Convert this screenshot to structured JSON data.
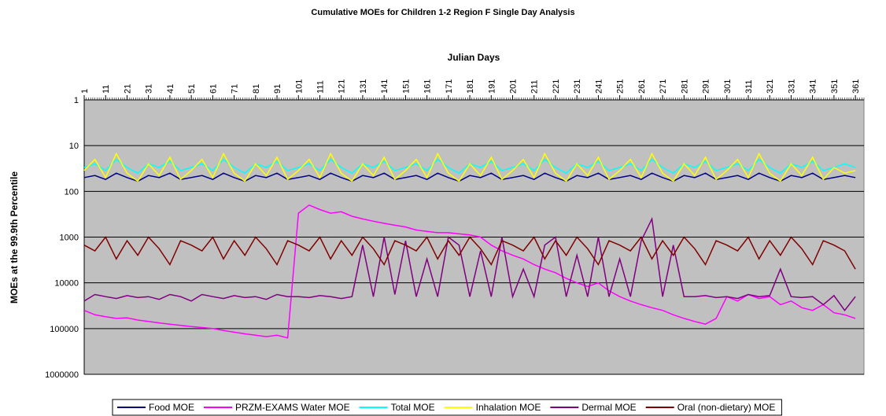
{
  "chart_data": {
    "type": "line",
    "title": "Cumulative MOEs for Children 1-2 Region F Single Day Analysis",
    "x_label": "Julian Days",
    "y_label": "MOEs at the 99.9th Percentile",
    "x": [
      1,
      6,
      11,
      16,
      21,
      26,
      31,
      36,
      41,
      46,
      51,
      56,
      61,
      66,
      71,
      76,
      81,
      86,
      91,
      96,
      101,
      106,
      111,
      116,
      121,
      126,
      131,
      136,
      141,
      146,
      151,
      156,
      161,
      166,
      171,
      176,
      181,
      186,
      191,
      196,
      201,
      206,
      211,
      216,
      221,
      226,
      231,
      236,
      241,
      246,
      251,
      256,
      261,
      266,
      271,
      276,
      281,
      286,
      291,
      296,
      301,
      306,
      311,
      316,
      321,
      326,
      331,
      336,
      341,
      346,
      351,
      356,
      361
    ],
    "xlim": [
      1,
      365
    ],
    "xticks": [
      1,
      11,
      21,
      31,
      41,
      51,
      61,
      71,
      81,
      91,
      101,
      111,
      121,
      131,
      141,
      151,
      161,
      171,
      181,
      191,
      201,
      211,
      221,
      231,
      241,
      251,
      261,
      271,
      281,
      291,
      301,
      311,
      321,
      331,
      341,
      351,
      361
    ],
    "ylim": [
      1,
      1000000
    ],
    "yticks": [
      1,
      10,
      100,
      1000,
      10000,
      100000,
      1000000
    ],
    "y_log": true,
    "y_inverted": true,
    "x_axis_position": "top",
    "grid": true,
    "plot_background": "#c0c0c0",
    "legend_position": "bottom",
    "series": [
      {
        "name": "Food MOE",
        "color": "#000080",
        "values": [
          50,
          45,
          55,
          40,
          50,
          60,
          45,
          50,
          40,
          55,
          50,
          45,
          55,
          40,
          50,
          60,
          45,
          50,
          40,
          55,
          50,
          45,
          55,
          40,
          50,
          60,
          45,
          50,
          40,
          55,
          50,
          45,
          55,
          40,
          50,
          60,
          45,
          50,
          40,
          55,
          50,
          45,
          55,
          40,
          50,
          60,
          45,
          50,
          40,
          55,
          50,
          45,
          55,
          40,
          50,
          60,
          45,
          50,
          40,
          55,
          50,
          45,
          55,
          40,
          50,
          60,
          45,
          50,
          40,
          55,
          50,
          45,
          50
        ]
      },
      {
        "name": "PRZM-EXAMS Water MOE",
        "color": "#ff00ff",
        "values": [
          40000,
          50000,
          55000,
          60000,
          58000,
          65000,
          70000,
          75000,
          80000,
          85000,
          90000,
          95000,
          100000,
          110000,
          120000,
          130000,
          140000,
          150000,
          140000,
          160000,
          300,
          200,
          250,
          300,
          280,
          350,
          400,
          450,
          500,
          550,
          600,
          700,
          750,
          800,
          800,
          850,
          900,
          1000,
          1500,
          2000,
          2500,
          3000,
          4000,
          5000,
          6000,
          8000,
          10000,
          12000,
          10000,
          15000,
          20000,
          25000,
          30000,
          35000,
          40000,
          50000,
          60000,
          70000,
          80000,
          60000,
          20000,
          25000,
          18000,
          22000,
          20000,
          30000,
          25000,
          35000,
          40000,
          30000,
          45000,
          50000,
          60000
        ]
      },
      {
        "name": "Total MOE",
        "color": "#00ffff",
        "values": [
          30,
          25,
          35,
          20,
          30,
          40,
          25,
          30,
          22,
          35,
          30,
          25,
          35,
          20,
          30,
          40,
          25,
          30,
          22,
          35,
          30,
          25,
          35,
          20,
          30,
          40,
          25,
          30,
          22,
          35,
          30,
          25,
          35,
          20,
          30,
          40,
          25,
          30,
          22,
          35,
          30,
          25,
          35,
          20,
          30,
          40,
          25,
          30,
          22,
          35,
          30,
          25,
          35,
          20,
          30,
          40,
          25,
          30,
          22,
          35,
          30,
          25,
          35,
          20,
          30,
          40,
          25,
          30,
          22,
          35,
          30,
          25,
          30
        ]
      },
      {
        "name": "Inhalation MOE",
        "color": "#ffff00",
        "values": [
          35,
          20,
          50,
          15,
          40,
          60,
          25,
          45,
          18,
          55,
          35,
          20,
          50,
          15,
          40,
          60,
          25,
          45,
          18,
          55,
          35,
          20,
          50,
          15,
          40,
          60,
          25,
          45,
          18,
          55,
          35,
          20,
          50,
          15,
          40,
          60,
          25,
          45,
          18,
          55,
          35,
          20,
          50,
          15,
          40,
          60,
          25,
          45,
          18,
          55,
          35,
          20,
          50,
          15,
          40,
          60,
          25,
          45,
          18,
          55,
          35,
          20,
          50,
          15,
          40,
          60,
          25,
          45,
          18,
          55,
          30,
          40,
          35
        ]
      },
      {
        "name": "Dermal MOE",
        "color": "#800080",
        "values": [
          25000,
          18000,
          20000,
          22000,
          19000,
          21000,
          20000,
          23000,
          18000,
          20000,
          25000,
          18000,
          20000,
          22000,
          19000,
          21000,
          20000,
          23000,
          18000,
          20000,
          20000,
          21000,
          19000,
          20000,
          22000,
          20000,
          1500,
          20000,
          1000,
          18000,
          1200,
          20000,
          3000,
          20000,
          1000,
          1500,
          20000,
          2000,
          20000,
          1000,
          20000,
          5000,
          20000,
          1500,
          1000,
          20000,
          2500,
          20000,
          1000,
          20000,
          3000,
          20000,
          1200,
          400,
          20000,
          1500,
          20000,
          20000,
          19000,
          21000,
          20000,
          22000,
          18000,
          20000,
          19000,
          5000,
          20000,
          21000,
          20000,
          30000,
          19000,
          40000,
          20000
        ]
      },
      {
        "name": "Oral (non-dietary) MOE",
        "color": "#800000",
        "values": [
          1500,
          2000,
          1000,
          3000,
          1200,
          2500,
          1000,
          1800,
          4000,
          1200,
          1500,
          2000,
          1000,
          3000,
          1200,
          2500,
          1000,
          1800,
          4000,
          1200,
          1500,
          2000,
          1000,
          3000,
          1200,
          2500,
          1000,
          1800,
          4000,
          1200,
          1500,
          2000,
          1000,
          3000,
          1200,
          2500,
          1000,
          1800,
          4000,
          1200,
          1500,
          2000,
          1000,
          3000,
          1200,
          2500,
          1000,
          1800,
          4000,
          1200,
          1500,
          2000,
          1000,
          3000,
          1200,
          2500,
          1000,
          1800,
          4000,
          1200,
          1500,
          2000,
          1000,
          3000,
          1200,
          2500,
          1000,
          1800,
          4000,
          1200,
          1500,
          2000,
          5000
        ]
      }
    ]
  }
}
